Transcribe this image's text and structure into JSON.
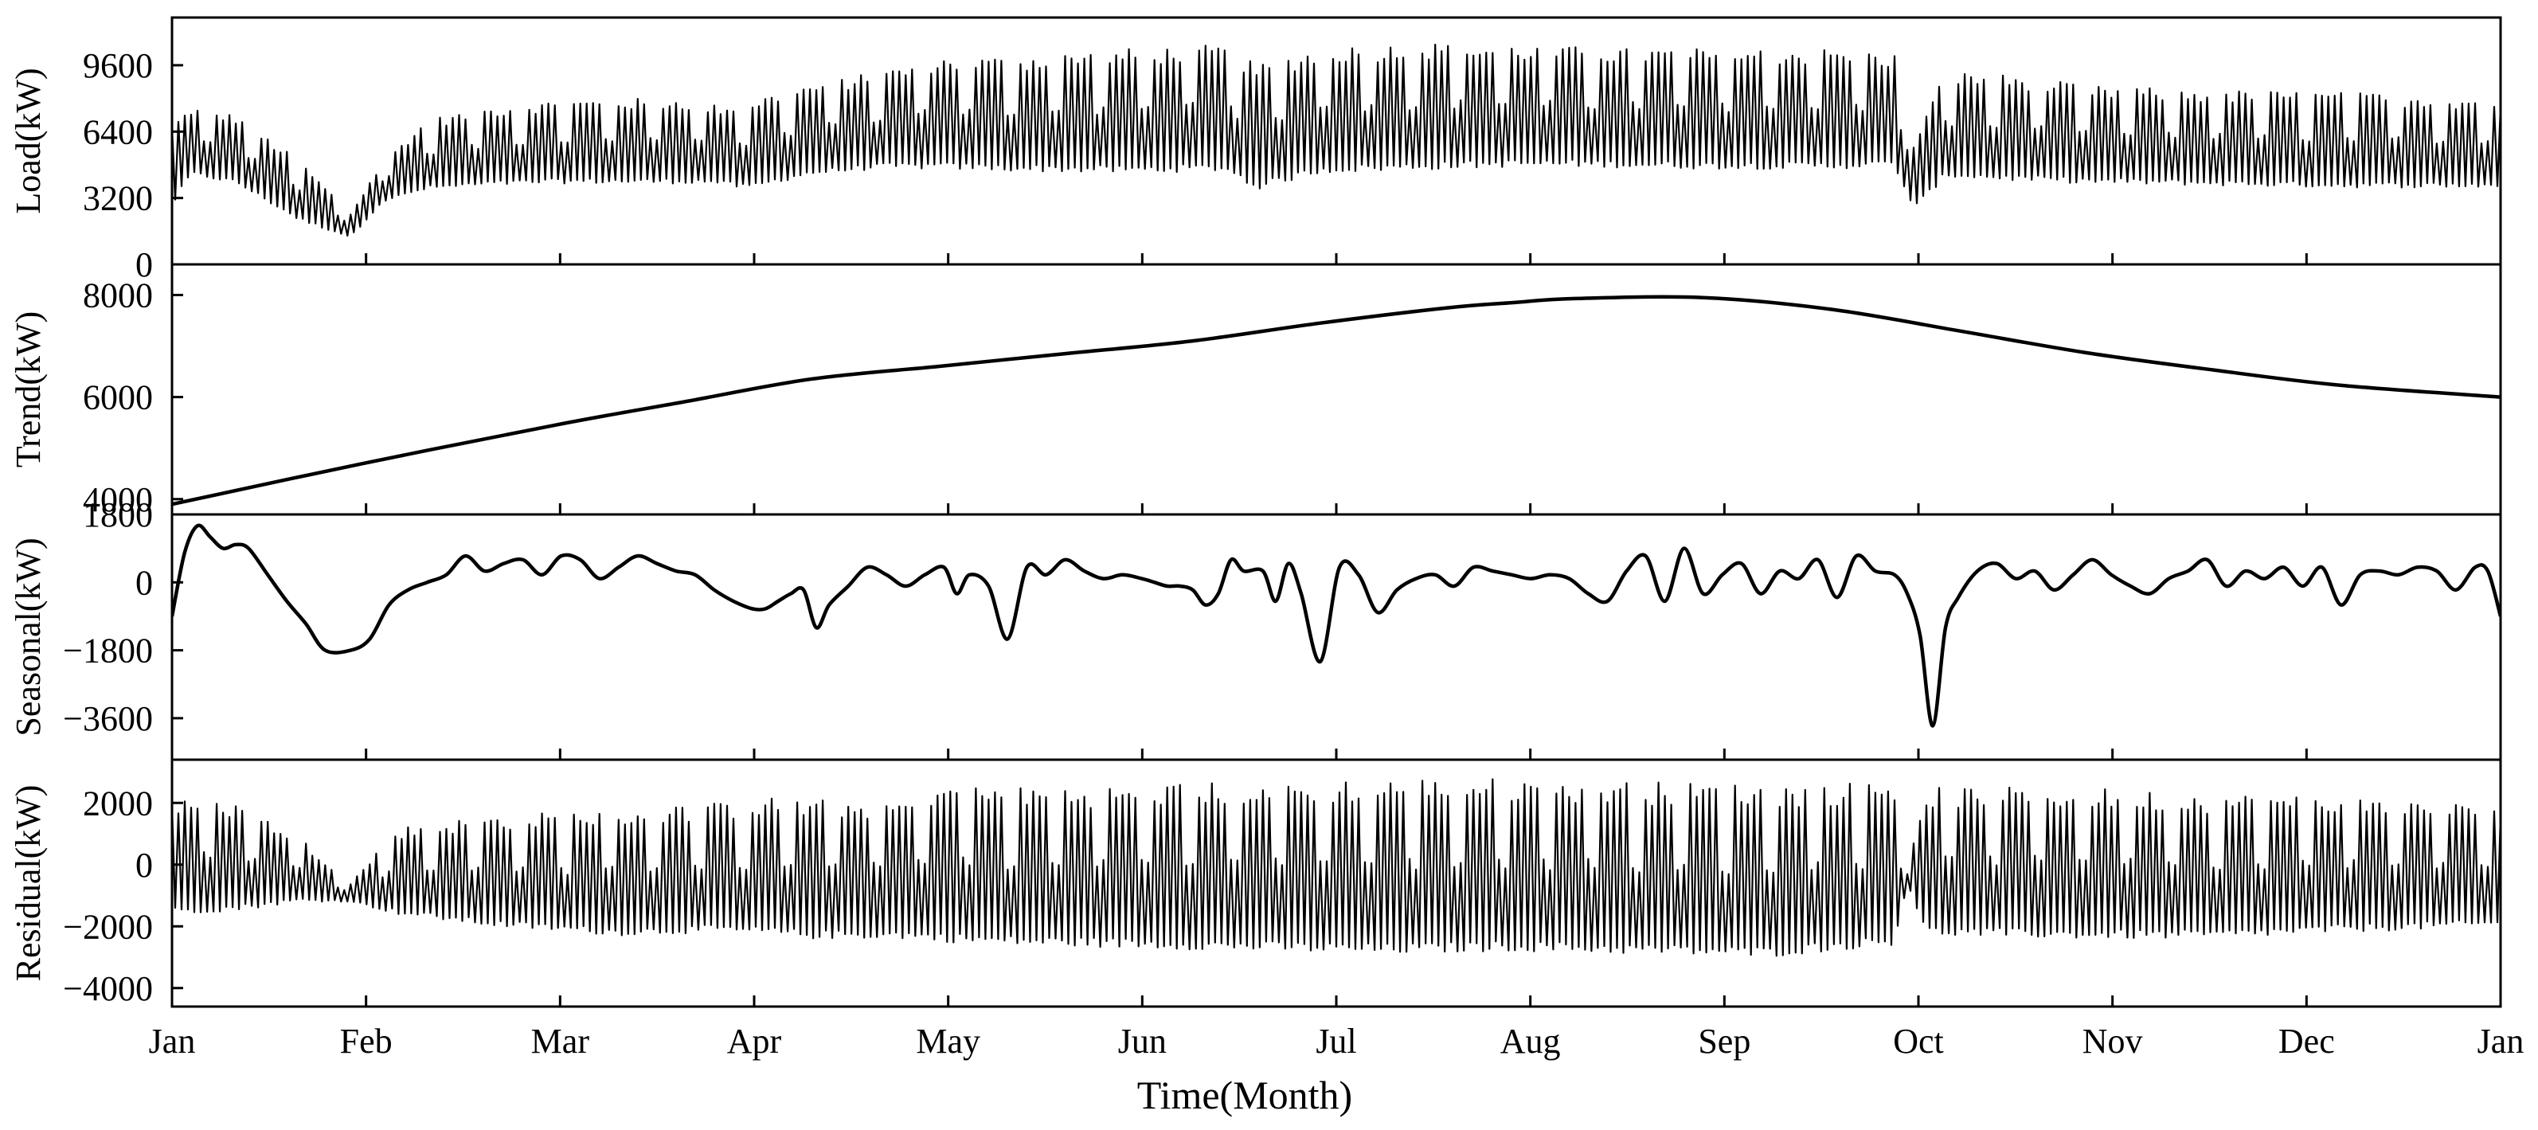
{
  "chart_data": {
    "type": "line",
    "xlabel": "Time(Month)",
    "x_tick_labels": [
      "Jan",
      "Feb",
      "Mar",
      "Apr",
      "May",
      "Jun",
      "Jul",
      "Aug",
      "Sep",
      "Oct",
      "Nov",
      "Dec",
      "Jan"
    ],
    "x_range_days": [
      0,
      365
    ],
    "grid": false,
    "panels": [
      {
        "name": "load",
        "ylabel": "Load(kW)",
        "ylim": [
          0,
          11900
        ],
        "yticks": [
          0,
          3200,
          6400,
          9600
        ],
        "daily_envelope": {
          "days": [
            0,
            3,
            10,
            20,
            28,
            33,
            40,
            50,
            60,
            70,
            80,
            85,
            90,
            100,
            111,
            120,
            130,
            150,
            165,
            170,
            180,
            200,
            210,
            220,
            240,
            260,
            270,
            273,
            278,
            290,
            300,
            320,
            340,
            365
          ],
          "min": [
            2800,
            4300,
            3900,
            2100,
            1300,
            3000,
            3600,
            3800,
            3900,
            3900,
            3900,
            3900,
            3600,
            4300,
            4600,
            4600,
            4500,
            4400,
            4500,
            3600,
            4400,
            4600,
            4700,
            4700,
            4600,
            4600,
            4700,
            2600,
            4200,
            4000,
            3900,
            3800,
            3700,
            3700
          ],
          "max": [
            6800,
            7600,
            7200,
            5000,
            2500,
            5000,
            7000,
            7600,
            7900,
            8000,
            8000,
            7700,
            7900,
            8700,
            9300,
            10000,
            10000,
            10400,
            10600,
            9600,
            10500,
            10700,
            10600,
            10500,
            10400,
            10400,
            10200,
            6000,
            9300,
            9100,
            8600,
            8400,
            8300,
            8000
          ]
        }
      },
      {
        "name": "trend",
        "ylabel": "Trend(kW)",
        "ylim": [
          3700,
          8600
        ],
        "yticks": [
          4000,
          6000,
          8000
        ],
        "series": {
          "x": [
            0,
            30,
            60,
            80,
            100,
            120,
            140,
            160,
            180,
            200,
            210,
            220,
            240,
            260,
            280,
            300,
            320,
            340,
            365
          ],
          "y": [
            3900,
            4700,
            5450,
            5900,
            6350,
            6600,
            6850,
            7100,
            7450,
            7750,
            7850,
            7930,
            7950,
            7720,
            7300,
            6870,
            6530,
            6230,
            6000
          ]
        }
      },
      {
        "name": "seasonal",
        "ylabel": "Seasonal(kW)",
        "ylim": [
          -4700,
          1800
        ],
        "yticks": [
          -3600,
          -1800,
          0,
          1800
        ],
        "series": {
          "x": [
            0,
            2,
            4,
            6,
            8,
            10,
            12,
            15,
            18,
            21,
            24,
            28,
            31,
            34,
            37,
            40,
            43,
            46,
            49,
            52,
            55,
            58,
            61,
            64,
            67,
            70,
            73,
            76,
            79,
            82,
            85,
            88,
            91,
            93,
            95,
            97,
            99,
            101,
            103,
            106,
            109,
            112,
            115,
            118,
            121,
            123,
            125,
            128,
            131,
            134,
            137,
            140,
            143,
            146,
            149,
            152,
            154,
            156,
            158,
            160,
            162,
            164,
            166,
            168,
            171,
            173,
            175,
            177,
            180,
            183,
            186,
            189,
            192,
            195,
            198,
            201,
            204,
            207,
            210,
            213,
            216,
            219,
            222,
            225,
            228,
            231,
            234,
            237,
            240,
            243,
            246,
            249,
            252,
            255,
            258,
            261,
            264,
            267,
            270,
            272,
            274,
            276,
            278,
            280,
            283,
            286,
            289,
            292,
            295,
            298,
            301,
            304,
            307,
            310,
            313,
            316,
            319,
            322,
            325,
            328,
            331,
            334,
            337,
            340,
            343,
            346,
            349,
            352,
            355,
            358,
            361,
            363,
            365
          ],
          "y": [
            -900,
            800,
            1500,
            1200,
            900,
            1000,
            900,
            200,
            -500,
            -1100,
            -1800,
            -1800,
            -1500,
            -600,
            -200,
            0,
            200,
            700,
            300,
            500,
            600,
            200,
            700,
            600,
            100,
            400,
            700,
            500,
            300,
            200,
            -200,
            -500,
            -700,
            -700,
            -500,
            -300,
            -200,
            -1200,
            -600,
            -100,
            400,
            200,
            -100,
            200,
            400,
            -300,
            200,
            -100,
            -1500,
            400,
            200,
            600,
            300,
            100,
            200,
            100,
            0,
            -100,
            -100,
            -200,
            -600,
            -300,
            600,
            300,
            300,
            -500,
            500,
            -300,
            -2100,
            400,
            200,
            -800,
            -200,
            100,
            200,
            -100,
            400,
            300,
            200,
            100,
            200,
            100,
            -300,
            -500,
            300,
            700,
            -500,
            900,
            -300,
            200,
            500,
            -300,
            300,
            100,
            600,
            -400,
            700,
            300,
            200,
            -300,
            -1400,
            -3800,
            -1200,
            -400,
            300,
            500,
            100,
            300,
            -200,
            200,
            600,
            200,
            -100,
            -300,
            100,
            300,
            600,
            -100,
            300,
            100,
            400,
            -100,
            400,
            -600,
            200,
            300,
            200,
            400,
            300,
            -200,
            400,
            300,
            -900
          ]
        }
      },
      {
        "name": "residual",
        "ylabel": "Residual(kW)",
        "ylim": [
          -4600,
          3400
        ],
        "yticks": [
          -4000,
          -2000,
          0,
          2000
        ],
        "daily_envelope": {
          "days": [
            0,
            10,
            20,
            28,
            35,
            50,
            70,
            85,
            95,
            100,
            115,
            120,
            130,
            150,
            170,
            190,
            210,
            230,
            250,
            270,
            272,
            275,
            300,
            320,
            340,
            365
          ],
          "min": [
            -1600,
            -1500,
            -1200,
            -1200,
            -1600,
            -2000,
            -2300,
            -2200,
            -2300,
            -2400,
            -2400,
            -2500,
            -2600,
            -2700,
            -2800,
            -2900,
            -2800,
            -2900,
            -3000,
            -2600,
            -600,
            -2300,
            -2400,
            -2400,
            -2200,
            -2000
          ],
          "max": [
            2100,
            2000,
            900,
            -600,
            1200,
            1600,
            1800,
            2000,
            2200,
            2100,
            2100,
            2700,
            2500,
            2600,
            2700,
            2800,
            2800,
            2700,
            2600,
            2700,
            0,
            2500,
            2500,
            2300,
            2200,
            1900
          ]
        }
      }
    ]
  }
}
